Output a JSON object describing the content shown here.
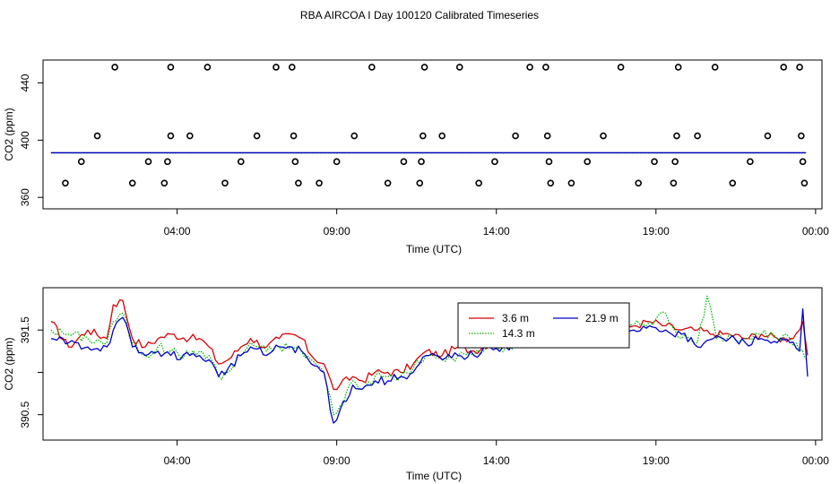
{
  "title": "RBA AIRCOA I  Day 100120  Calibrated Timeseries",
  "colors": {
    "3.6 m": "#dd0000",
    "14.3 m": "#00bb00",
    "21.9 m": "#0000cc",
    "axis": "#000000"
  },
  "chart_data": [
    {
      "type": "line+scatter",
      "panel": "top",
      "title": "",
      "xlabel": "Time (UTC)",
      "ylabel": "CO2 (ppm)",
      "xlim_hours": [
        23.8,
        48.2
      ],
      "ylim": [
        352,
        456
      ],
      "x_ticks": [
        {
          "h": 28,
          "label": "04:00"
        },
        {
          "h": 33,
          "label": "09:00"
        },
        {
          "h": 38,
          "label": "14:00"
        },
        {
          "h": 43,
          "label": "19:00"
        },
        {
          "h": 48,
          "label": "00:00"
        }
      ],
      "y_ticks": [
        360,
        400,
        440
      ],
      "baseline_ppm": 391.2,
      "baseline_span_hours": [
        24.05,
        47.7
      ],
      "scatter_points": [
        {
          "h": 24.5,
          "y": 370
        },
        {
          "h": 25.0,
          "y": 385
        },
        {
          "h": 25.5,
          "y": 403
        },
        {
          "h": 26.05,
          "y": 451
        },
        {
          "h": 26.6,
          "y": 370
        },
        {
          "h": 27.1,
          "y": 385
        },
        {
          "h": 27.6,
          "y": 370
        },
        {
          "h": 27.7,
          "y": 385
        },
        {
          "h": 27.8,
          "y": 451
        },
        {
          "h": 27.8,
          "y": 403
        },
        {
          "h": 28.4,
          "y": 403
        },
        {
          "h": 28.95,
          "y": 451
        },
        {
          "h": 29.5,
          "y": 370
        },
        {
          "h": 30.0,
          "y": 385
        },
        {
          "h": 30.5,
          "y": 403
        },
        {
          "h": 31.1,
          "y": 451
        },
        {
          "h": 31.6,
          "y": 451
        },
        {
          "h": 31.65,
          "y": 403
        },
        {
          "h": 31.7,
          "y": 385
        },
        {
          "h": 31.8,
          "y": 370
        },
        {
          "h": 32.45,
          "y": 370
        },
        {
          "h": 33.0,
          "y": 385
        },
        {
          "h": 33.55,
          "y": 403
        },
        {
          "h": 34.1,
          "y": 451
        },
        {
          "h": 34.6,
          "y": 370
        },
        {
          "h": 35.1,
          "y": 385
        },
        {
          "h": 35.6,
          "y": 370
        },
        {
          "h": 35.65,
          "y": 385
        },
        {
          "h": 35.7,
          "y": 403
        },
        {
          "h": 35.75,
          "y": 451
        },
        {
          "h": 36.3,
          "y": 403
        },
        {
          "h": 36.85,
          "y": 451
        },
        {
          "h": 37.45,
          "y": 370
        },
        {
          "h": 37.95,
          "y": 385
        },
        {
          "h": 38.6,
          "y": 403
        },
        {
          "h": 39.05,
          "y": 451
        },
        {
          "h": 39.55,
          "y": 451
        },
        {
          "h": 39.6,
          "y": 403
        },
        {
          "h": 39.65,
          "y": 385
        },
        {
          "h": 39.7,
          "y": 370
        },
        {
          "h": 40.35,
          "y": 370
        },
        {
          "h": 40.85,
          "y": 385
        },
        {
          "h": 41.35,
          "y": 403
        },
        {
          "h": 41.9,
          "y": 451
        },
        {
          "h": 42.45,
          "y": 370
        },
        {
          "h": 42.95,
          "y": 385
        },
        {
          "h": 43.55,
          "y": 370
        },
        {
          "h": 43.6,
          "y": 385
        },
        {
          "h": 43.65,
          "y": 403
        },
        {
          "h": 43.7,
          "y": 451
        },
        {
          "h": 44.3,
          "y": 403
        },
        {
          "h": 44.85,
          "y": 451
        },
        {
          "h": 45.4,
          "y": 370
        },
        {
          "h": 45.95,
          "y": 385
        },
        {
          "h": 46.5,
          "y": 403
        },
        {
          "h": 47.0,
          "y": 451
        },
        {
          "h": 47.5,
          "y": 451
        },
        {
          "h": 47.55,
          "y": 403
        },
        {
          "h": 47.6,
          "y": 385
        },
        {
          "h": 47.65,
          "y": 370
        }
      ]
    },
    {
      "type": "line",
      "panel": "bottom",
      "title": "",
      "xlabel": "Time (UTC)",
      "ylabel": "CO2 (ppm)",
      "xlim_hours": [
        23.8,
        48.2
      ],
      "ylim": [
        390.2,
        392.0
      ],
      "x_ticks": [
        {
          "h": 28,
          "label": "04:00"
        },
        {
          "h": 33,
          "label": "09:00"
        },
        {
          "h": 38,
          "label": "14:00"
        },
        {
          "h": 43,
          "label": "19:00"
        },
        {
          "h": 48,
          "label": "00:00"
        }
      ],
      "y_ticks": [
        {
          "v": 390.5,
          "label": "390.5"
        },
        {
          "v": 391.0,
          "label": ""
        },
        {
          "v": 391.5,
          "label": "391.5"
        }
      ],
      "legend": {
        "placement": "top-center-right",
        "entries": [
          "3.6 m",
          "21.9 m",
          "14.3 m"
        ]
      },
      "series": [
        {
          "name": "3.6 m",
          "anchors": [
            [
              24.05,
              391.6
            ],
            [
              24.6,
              391.3
            ],
            [
              25.2,
              391.5
            ],
            [
              25.8,
              391.4
            ],
            [
              26.0,
              391.8
            ],
            [
              26.3,
              391.85
            ],
            [
              26.6,
              391.4
            ],
            [
              27.0,
              391.3
            ],
            [
              27.4,
              391.4
            ],
            [
              27.8,
              391.45
            ],
            [
              28.4,
              391.4
            ],
            [
              28.7,
              391.4
            ],
            [
              29.0,
              391.3
            ],
            [
              29.3,
              391.1
            ],
            [
              29.6,
              391.15
            ],
            [
              30.0,
              391.3
            ],
            [
              30.3,
              391.4
            ],
            [
              30.8,
              391.3
            ],
            [
              31.2,
              391.4
            ],
            [
              31.6,
              391.45
            ],
            [
              31.9,
              391.4
            ],
            [
              32.2,
              391.2
            ],
            [
              32.6,
              391.1
            ],
            [
              32.9,
              390.8
            ],
            [
              33.1,
              390.85
            ],
            [
              33.5,
              390.95
            ],
            [
              33.8,
              390.9
            ],
            [
              34.2,
              391.0
            ],
            [
              34.6,
              391.0
            ],
            [
              35.0,
              391.0
            ],
            [
              35.4,
              391.1
            ],
            [
              35.8,
              391.25
            ],
            [
              36.3,
              391.2
            ],
            [
              36.8,
              391.3
            ],
            [
              37.3,
              391.25
            ],
            [
              37.8,
              391.35
            ],
            [
              38.3,
              391.35
            ],
            [
              38.8,
              391.4
            ],
            [
              39.3,
              391.4
            ],
            [
              39.8,
              391.5
            ],
            [
              40.3,
              391.55
            ],
            [
              40.8,
              391.5
            ],
            [
              41.3,
              391.55
            ],
            [
              41.8,
              391.5
            ],
            [
              42.3,
              391.55
            ],
            [
              42.8,
              391.6
            ],
            [
              43.3,
              391.55
            ],
            [
              43.8,
              391.5
            ],
            [
              44.3,
              391.5
            ],
            [
              44.8,
              391.45
            ],
            [
              45.3,
              391.45
            ],
            [
              45.8,
              391.4
            ],
            [
              46.3,
              391.45
            ],
            [
              46.8,
              391.4
            ],
            [
              47.2,
              391.4
            ],
            [
              47.5,
              391.5
            ],
            [
              47.6,
              391.6
            ],
            [
              47.75,
              391.2
            ]
          ]
        },
        {
          "name": "14.3 m",
          "anchors": [
            [
              24.05,
              391.5
            ],
            [
              24.6,
              391.45
            ],
            [
              25.2,
              391.4
            ],
            [
              25.8,
              391.35
            ],
            [
              26.0,
              391.6
            ],
            [
              26.3,
              391.7
            ],
            [
              26.6,
              391.35
            ],
            [
              27.0,
              391.2
            ],
            [
              27.4,
              391.3
            ],
            [
              27.8,
              391.25
            ],
            [
              28.4,
              391.2
            ],
            [
              28.7,
              391.25
            ],
            [
              29.0,
              391.2
            ],
            [
              29.3,
              390.95
            ],
            [
              29.6,
              391.0
            ],
            [
              30.0,
              391.2
            ],
            [
              30.3,
              391.35
            ],
            [
              30.8,
              391.25
            ],
            [
              31.2,
              391.3
            ],
            [
              31.6,
              391.3
            ],
            [
              31.9,
              391.25
            ],
            [
              32.2,
              391.15
            ],
            [
              32.6,
              391.0
            ],
            [
              32.9,
              390.5
            ],
            [
              33.1,
              390.6
            ],
            [
              33.5,
              390.9
            ],
            [
              33.8,
              390.8
            ],
            [
              34.2,
              390.95
            ],
            [
              34.6,
              390.95
            ],
            [
              35.0,
              390.95
            ],
            [
              35.4,
              391.05
            ],
            [
              35.8,
              391.2
            ],
            [
              36.3,
              391.15
            ],
            [
              36.8,
              391.2
            ],
            [
              37.3,
              391.2
            ],
            [
              37.8,
              391.3
            ],
            [
              38.3,
              391.3
            ],
            [
              38.8,
              391.35
            ],
            [
              39.3,
              391.35
            ],
            [
              39.8,
              391.4
            ],
            [
              40.3,
              391.55
            ],
            [
              40.8,
              391.5
            ],
            [
              41.3,
              391.5
            ],
            [
              41.8,
              391.55
            ],
            [
              42.3,
              391.55
            ],
            [
              42.8,
              391.6
            ],
            [
              43.3,
              391.7
            ],
            [
              43.8,
              391.4
            ],
            [
              44.3,
              391.35
            ],
            [
              44.6,
              391.9
            ],
            [
              44.9,
              391.4
            ],
            [
              45.3,
              391.45
            ],
            [
              45.8,
              391.4
            ],
            [
              46.3,
              391.45
            ],
            [
              46.8,
              391.4
            ],
            [
              47.2,
              391.4
            ],
            [
              47.5,
              391.25
            ],
            [
              47.75,
              391.15
            ]
          ]
        },
        {
          "name": "21.9 m",
          "anchors": [
            [
              24.05,
              391.4
            ],
            [
              24.6,
              391.35
            ],
            [
              25.2,
              391.3
            ],
            [
              25.8,
              391.3
            ],
            [
              26.0,
              391.5
            ],
            [
              26.3,
              391.65
            ],
            [
              26.6,
              391.3
            ],
            [
              27.0,
              391.2
            ],
            [
              27.4,
              391.25
            ],
            [
              27.8,
              391.2
            ],
            [
              28.4,
              391.2
            ],
            [
              28.7,
              391.2
            ],
            [
              29.0,
              391.15
            ],
            [
              29.3,
              390.95
            ],
            [
              29.6,
              391.05
            ],
            [
              30.0,
              391.2
            ],
            [
              30.3,
              391.3
            ],
            [
              30.8,
              391.2
            ],
            [
              31.2,
              391.3
            ],
            [
              31.6,
              391.3
            ],
            [
              31.9,
              391.25
            ],
            [
              32.2,
              391.1
            ],
            [
              32.6,
              391.0
            ],
            [
              32.9,
              390.4
            ],
            [
              33.1,
              390.55
            ],
            [
              33.5,
              390.85
            ],
            [
              33.8,
              390.8
            ],
            [
              34.2,
              390.9
            ],
            [
              34.6,
              390.9
            ],
            [
              35.0,
              390.95
            ],
            [
              35.4,
              391.0
            ],
            [
              35.8,
              391.2
            ],
            [
              36.3,
              391.15
            ],
            [
              36.8,
              391.2
            ],
            [
              37.3,
              391.2
            ],
            [
              37.8,
              391.3
            ],
            [
              38.3,
              391.3
            ],
            [
              38.8,
              391.35
            ],
            [
              39.3,
              391.4
            ],
            [
              39.8,
              391.45
            ],
            [
              40.3,
              391.5
            ],
            [
              40.8,
              391.45
            ],
            [
              41.3,
              391.5
            ],
            [
              41.8,
              391.5
            ],
            [
              42.3,
              391.5
            ],
            [
              42.8,
              391.55
            ],
            [
              43.3,
              391.5
            ],
            [
              43.8,
              391.45
            ],
            [
              44.3,
              391.3
            ],
            [
              44.8,
              391.4
            ],
            [
              45.3,
              391.4
            ],
            [
              45.8,
              391.35
            ],
            [
              46.3,
              391.4
            ],
            [
              46.8,
              391.35
            ],
            [
              47.2,
              391.35
            ],
            [
              47.5,
              391.25
            ],
            [
              47.6,
              391.75
            ],
            [
              47.75,
              390.95
            ]
          ]
        }
      ]
    }
  ]
}
